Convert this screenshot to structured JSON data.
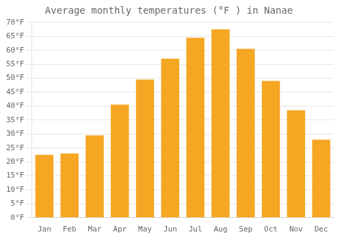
{
  "chart_data": {
    "type": "bar",
    "title": "Average monthly temperatures (°F ) in Nanae",
    "categories": [
      "Jan",
      "Feb",
      "Mar",
      "Apr",
      "May",
      "Jun",
      "Jul",
      "Aug",
      "Sep",
      "Oct",
      "Nov",
      "Dec"
    ],
    "values": [
      22.5,
      23.0,
      29.5,
      40.5,
      49.5,
      57.0,
      64.5,
      67.5,
      60.5,
      49.0,
      38.5,
      28.0
    ],
    "color": "#F5A623",
    "ylim": [
      0,
      70
    ],
    "yticks": [
      {
        "value": 0,
        "label": "0°F"
      },
      {
        "value": 5,
        "label": "5°F"
      },
      {
        "value": 10,
        "label": "10°F"
      },
      {
        "value": 15,
        "label": "15°F"
      },
      {
        "value": 20,
        "label": "20°F"
      },
      {
        "value": 25,
        "label": "25°F"
      },
      {
        "value": 30,
        "label": "30°F"
      },
      {
        "value": 35,
        "label": "35°F"
      },
      {
        "value": 40,
        "label": "40°F"
      },
      {
        "value": 45,
        "label": "45°F"
      },
      {
        "value": 50,
        "label": "50°F"
      },
      {
        "value": 55,
        "label": "55°F"
      },
      {
        "value": 60,
        "label": "60°F"
      },
      {
        "value": 65,
        "label": "65°F"
      },
      {
        "value": 70,
        "label": "70°F"
      }
    ],
    "grid": true
  }
}
